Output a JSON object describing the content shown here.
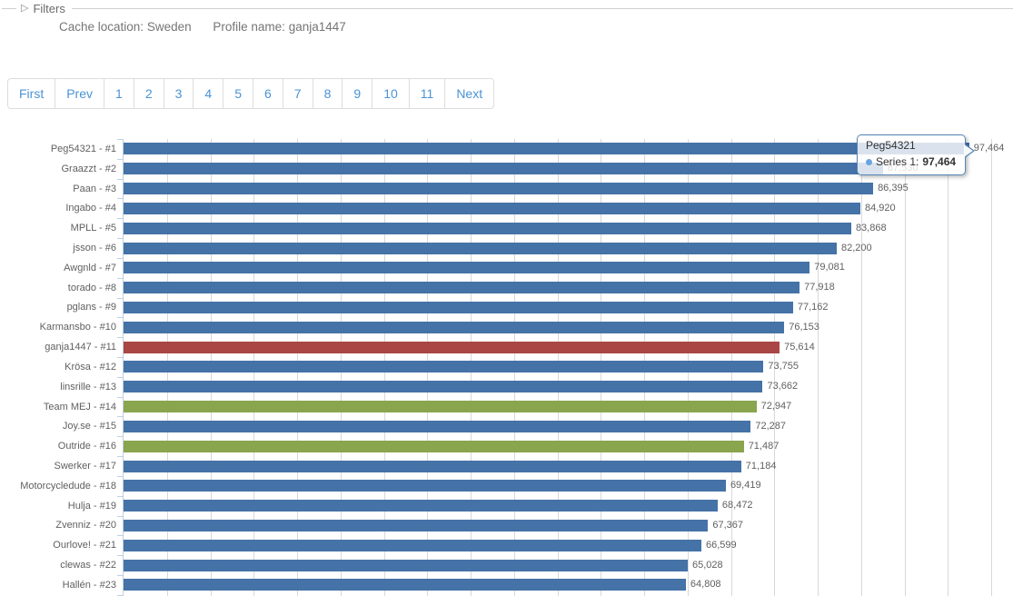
{
  "filters": {
    "legend": "Filters",
    "cache_location_label": "Cache location:",
    "cache_location_value": "Sweden",
    "profile_name_label": "Profile name:",
    "profile_name_value": "ganja1447"
  },
  "pagination": {
    "items": [
      "First",
      "Prev",
      "1",
      "2",
      "3",
      "4",
      "5",
      "6",
      "7",
      "8",
      "9",
      "10",
      "11",
      "Next"
    ]
  },
  "tooltip": {
    "title": "Peg54321",
    "series_label": "Series 1:",
    "value": "97,464"
  },
  "chart_data": {
    "type": "bar",
    "orientation": "horizontal",
    "title": "",
    "xlabel": "",
    "ylabel": "",
    "legend": "none",
    "grid": true,
    "grid_interval": 5000,
    "xlim": [
      0,
      102000
    ],
    "series_name": "Series 1",
    "categories": [
      "Peg54321 - #1",
      "Graazzt - #2",
      "Paan - #3",
      "Ingabo - #4",
      "MPLL - #5",
      "jsson - #6",
      "Awgnld - #7",
      "torado - #8",
      "pglans - #9",
      "Karmansbo - #10",
      "ganja1447 - #11",
      "Krösa - #12",
      "linsrille - #13",
      "Team MEJ - #14",
      "Joy.se - #15",
      "Outride - #16",
      "Swerker - #17",
      "Motorcycledude - #18",
      "Hulja - #19",
      "Zvenniz - #20",
      "Ourlove! - #21",
      "clewas - #22",
      "Hallén - #23"
    ],
    "values": [
      97464,
      87530,
      86395,
      84920,
      83868,
      82200,
      79081,
      77918,
      77162,
      76153,
      75614,
      73755,
      73662,
      72947,
      72287,
      71487,
      71184,
      69419,
      68472,
      67367,
      66599,
      65028,
      64808
    ],
    "value_labels": [
      "97,464",
      "87,530",
      "86,395",
      "84,920",
      "83,868",
      "82,200",
      "79,081",
      "77,918",
      "77,162",
      "76,153",
      "75,614",
      "73,755",
      "73,662",
      "72,947",
      "72,287",
      "71,487",
      "71,184",
      "69,419",
      "68,472",
      "67,367",
      "66,599",
      "65,028",
      "64,808"
    ],
    "bar_palette": {
      "default": "#4572A7",
      "self": "#AA4643",
      "team": "#89A54E"
    },
    "bar_roles": [
      "default",
      "default",
      "default",
      "default",
      "default",
      "default",
      "default",
      "default",
      "default",
      "default",
      "self",
      "default",
      "default",
      "team",
      "default",
      "team",
      "default",
      "default",
      "default",
      "default",
      "default",
      "default",
      "default"
    ]
  }
}
